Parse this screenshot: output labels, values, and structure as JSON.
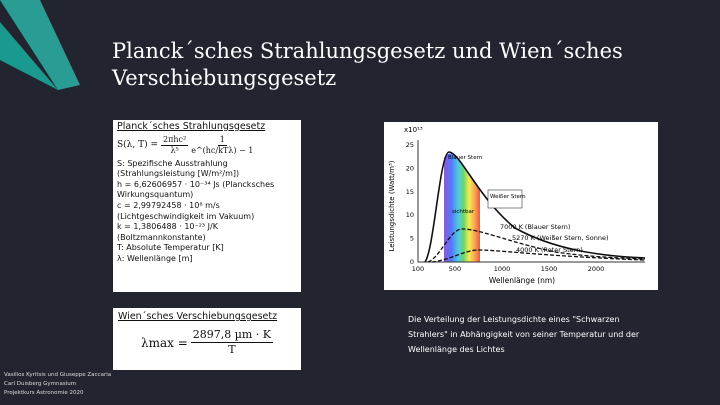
{
  "title": "Planck´sches Strahlungsgesetz und Wien´sches Verschiebungsgesetz",
  "planck": {
    "heading": "Planck´sches Strahlungsgesetz",
    "formula": {
      "lhs": "S(λ, T) =",
      "num1": "2πhc²",
      "den1": "λ⁵",
      "num2": "1",
      "den2": "e^(hc/kTλ) − 1"
    },
    "lines": [
      "S: Spezifische Ausstrahlung (Strahlungsleistung [W/m²/m])",
      "h = 6,62606957 · 10⁻³⁴ Js (Plancksches Wirkungsquantum)",
      "c = 2,99792458 · 10⁸ m/s (Lichtgeschwindigkeit im Vakuum)",
      "k = 1,3806488 · 10⁻²³ J/K (Boltzmannkonstante)",
      "T: Absolute Temperatur [K]",
      "λ: Wellenlänge [m]"
    ]
  },
  "wien": {
    "heading": "Wien´sches Verschiebungsgesetz",
    "formula": {
      "lhs": "λmax =",
      "num": "2897,8 µm · K",
      "den": "T"
    }
  },
  "figure": {
    "multiplier": "x10¹³",
    "y_label": "Leistungsdichte (Watt/m³)",
    "x_label": "Wellenlänge (nm)",
    "y_ticks": [
      "25",
      "20",
      "15",
      "10",
      "5",
      "0"
    ],
    "x_ticks": [
      "100",
      "500",
      "1000",
      "1500",
      "2000"
    ],
    "annotations": [
      "Blauer Stern",
      "Weißer Stern",
      "sichtbar"
    ],
    "curves": [
      "7000 K (Blauer Stern)",
      "5270 K (Weißer Stern, Sonne)",
      "4000 K (Roter Stern)"
    ],
    "caption": "Die Verteilung der Leistungsdichte eines \"Schwarzen Strahlers\" in Abhängigkeit von seiner Temperatur und der Wellenlänge des Lichtes"
  },
  "footer": [
    "Vasilios Kyritsis und Giuseppe Zaccaria",
    "Carl Duisberg Gymnasium",
    "Projektkurs Astronomie 2020"
  ]
}
